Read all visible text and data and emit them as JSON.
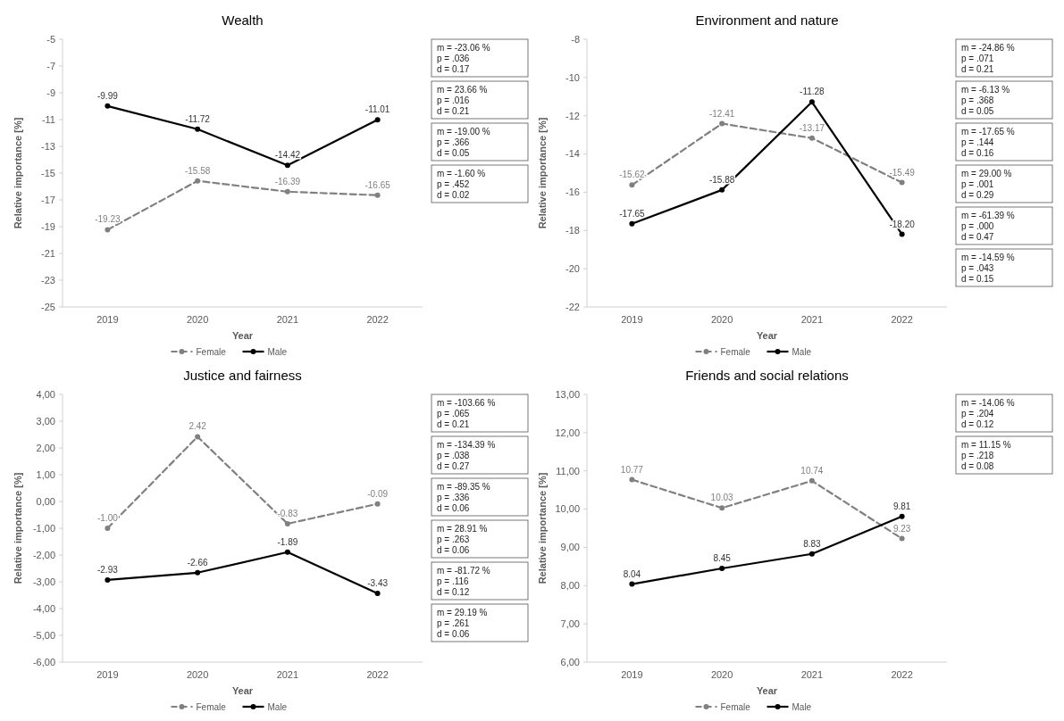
{
  "chart_data": [
    {
      "type": "line",
      "title": "Wealth",
      "xlabel": "Year",
      "ylabel": "Relative importance [%]",
      "categories": [
        "2019",
        "2020",
        "2021",
        "2022"
      ],
      "series": [
        {
          "name": "Female",
          "color": "#808080",
          "line_style": "dashed",
          "values": [
            -19.23,
            -15.58,
            -16.39,
            -16.65
          ],
          "value_labels": [
            "-19.23",
            "-15.58",
            "-16.39",
            "-16.65"
          ]
        },
        {
          "name": "Male",
          "color": "#000000",
          "line_style": "solid",
          "values": [
            -9.99,
            -11.72,
            -14.42,
            -11.01
          ],
          "value_labels": [
            "-9.99",
            "-11.72",
            "-14.42",
            "-11.01"
          ]
        }
      ],
      "ylim": [
        -25,
        -5
      ],
      "yticks": [
        -25,
        -23,
        -21,
        -19,
        -17,
        -15,
        -13,
        -11,
        -9,
        -7,
        -5
      ],
      "marker": "circle",
      "legend": "bottom",
      "grid": false,
      "annotations": [
        "m = -23.06 %\np = .036\nd = 0.17",
        "m = 23.66 %\np = .016\nd = 0.21",
        "m = -19.00 %\np = .366\nd = 0.05",
        "m = -1.60 %\np = .452\nd = 0.02"
      ]
    },
    {
      "type": "line",
      "title": "Environment and nature",
      "xlabel": "Year",
      "ylabel": "Relative importance [%]",
      "categories": [
        "2019",
        "2020",
        "2021",
        "2022"
      ],
      "series": [
        {
          "name": "Female",
          "color": "#808080",
          "line_style": "dashed",
          "values": [
            -15.62,
            -12.41,
            -13.17,
            -15.49
          ],
          "value_labels": [
            "-15.62",
            "-12.41",
            "-13.17",
            "-15.49"
          ]
        },
        {
          "name": "Male",
          "color": "#000000",
          "line_style": "solid",
          "values": [
            -17.65,
            -15.88,
            -11.28,
            -18.2
          ],
          "value_labels": [
            "-17.65",
            "-15.88",
            "-11.28",
            "-18.20"
          ]
        }
      ],
      "ylim": [
        -22,
        -8
      ],
      "yticks": [
        -22,
        -20,
        -18,
        -16,
        -14,
        -12,
        -10,
        -8
      ],
      "marker": "circle",
      "legend": "bottom",
      "grid": false,
      "annotations": [
        "m = -24.86 %\np = .071\nd = 0.21",
        "m = -6.13 %\np = .368\nd = 0.05",
        "m = -17.65 %\np = .144\nd = 0.16",
        "m = 29.00 %\np = .001\nd = 0.29",
        "m = -61.39 %\np = .000\nd = 0.47",
        "m = -14.59 %\np = .043\nd = 0.15"
      ]
    },
    {
      "type": "line",
      "title": "Justice and fairness",
      "xlabel": "Year",
      "ylabel": "Relative importance [%]",
      "categories": [
        "2019",
        "2020",
        "2021",
        "2022"
      ],
      "series": [
        {
          "name": "Female",
          "color": "#808080",
          "line_style": "dashed",
          "values": [
            -1.0,
            2.42,
            -0.83,
            -0.09
          ],
          "value_labels": [
            "-1.00",
            "2.42",
            "-0.83",
            "-0.09"
          ]
        },
        {
          "name": "Male",
          "color": "#000000",
          "line_style": "solid",
          "values": [
            -2.93,
            -2.66,
            -1.89,
            -3.43
          ],
          "value_labels": [
            "-2.93",
            "-2.66",
            "-1.89",
            "-3.43"
          ]
        }
      ],
      "ylim": [
        -6,
        4
      ],
      "yticks": [
        {
          "value": -6,
          "label": "-6,00"
        },
        {
          "value": -5,
          "label": "-5,00"
        },
        {
          "value": -4,
          "label": "-4,00"
        },
        {
          "value": -3,
          "label": "-3,00"
        },
        {
          "value": -2,
          "label": "-2,00"
        },
        {
          "value": -1,
          "label": "-1,00"
        },
        {
          "value": 0,
          "label": "0,00"
        },
        {
          "value": 1,
          "label": "1,00"
        },
        {
          "value": 2,
          "label": "2,00"
        },
        {
          "value": 3,
          "label": "3,00"
        },
        {
          "value": 4,
          "label": "4,00"
        }
      ],
      "marker": "circle",
      "legend": "bottom",
      "grid": false,
      "annotations": [
        "m = -103.66 %\np = .065\nd = 0.21",
        "m = -134.39 %\np = .038\nd = 0.27",
        "m = -89.35 %\np = .336\nd = 0.06",
        "m = 28.91 %\np = .263\nd = 0.06",
        "m = -81.72 %\np = .116\nd = 0.12",
        "m = 29.19 %\np = .261\nd = 0.06"
      ]
    },
    {
      "type": "line",
      "title": "Friends and social relations",
      "xlabel": "Year",
      "ylabel": "Relative importance [%]",
      "categories": [
        "2019",
        "2020",
        "2021",
        "2022"
      ],
      "series": [
        {
          "name": "Female",
          "color": "#808080",
          "line_style": "dashed",
          "values": [
            10.77,
            10.03,
            10.74,
            9.23
          ],
          "value_labels": [
            "10.77",
            "10.03",
            "10.74",
            "9.23"
          ]
        },
        {
          "name": "Male",
          "color": "#000000",
          "line_style": "solid",
          "values": [
            8.04,
            8.45,
            8.83,
            9.81
          ],
          "value_labels": [
            "8.04",
            "8.45",
            "8.83",
            "9.81"
          ]
        }
      ],
      "ylim": [
        6,
        13
      ],
      "yticks": [
        {
          "value": 6,
          "label": "6,00"
        },
        {
          "value": 7,
          "label": "7,00"
        },
        {
          "value": 8,
          "label": "8,00"
        },
        {
          "value": 9,
          "label": "9,00"
        },
        {
          "value": 10,
          "label": "10,00"
        },
        {
          "value": 11,
          "label": "11,00"
        },
        {
          "value": 12,
          "label": "12,00"
        },
        {
          "value": 13,
          "label": "13,00"
        }
      ],
      "marker": "circle",
      "legend": "bottom",
      "grid": false,
      "annotations": [
        "m = -14.06 %\np = .204\nd = 0.12",
        "m = 11.15 %\np = .218\nd = 0.08"
      ]
    }
  ]
}
